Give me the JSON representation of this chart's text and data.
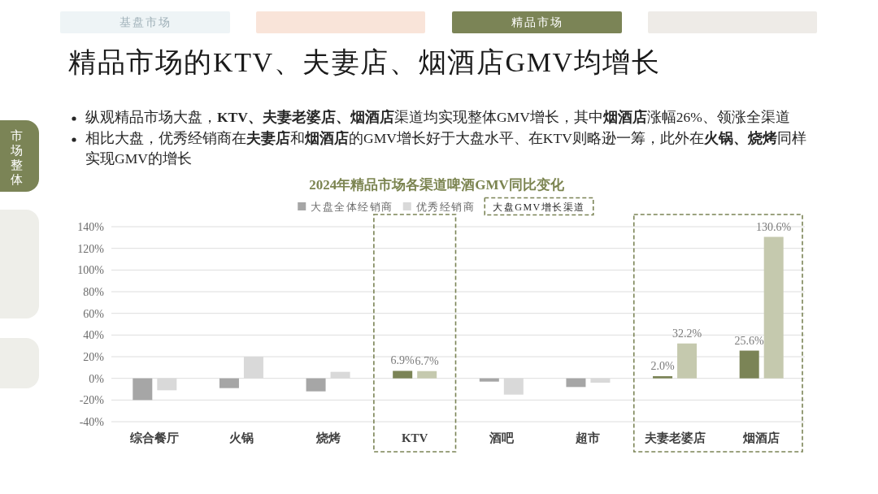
{
  "chart_data": {
    "type": "bar",
    "title": "2024年精品市场各渠道啤酒GMV同比变化",
    "categories": [
      "综合餐厅",
      "火锅",
      "烧烤",
      "KTV",
      "酒吧",
      "超市",
      "夫妻老婆店",
      "烟酒店"
    ],
    "series": [
      {
        "name": "大盘全体经销商",
        "color": "#a6a6a6",
        "colors": [
          "#a6a6a6",
          "#a6a6a6",
          "#a6a6a6",
          "#7b8456",
          "#a6a6a6",
          "#a6a6a6",
          "#7b8456",
          "#7b8456"
        ],
        "values": [
          -20,
          -9,
          -12,
          6.9,
          -3,
          -8,
          2.0,
          25.6
        ],
        "value_labels": [
          null,
          null,
          null,
          "6.9%",
          null,
          null,
          "2.0%",
          "25.6%"
        ]
      },
      {
        "name": "优秀经销商",
        "color": "#d9d9d9",
        "colors": [
          "#d9d9d9",
          "#d9d9d9",
          "#d9d9d9",
          "#c5c9ae",
          "#d9d9d9",
          "#d9d9d9",
          "#c5c9ae",
          "#c5c9ae"
        ],
        "values": [
          -11,
          20,
          6,
          6.7,
          -15,
          -4,
          32.2,
          130.6
        ],
        "value_labels": [
          null,
          null,
          null,
          "6.7%",
          null,
          null,
          "32.2%",
          "130.6%"
        ]
      }
    ],
    "ylim": [
      -40,
      140
    ],
    "yticks": [
      {
        "value": -40,
        "label": "-40%"
      },
      {
        "value": -20,
        "label": "-20%"
      },
      {
        "value": 0,
        "label": "0%"
      },
      {
        "value": 20,
        "label": "20%"
      },
      {
        "value": 40,
        "label": "40%"
      },
      {
        "value": 60,
        "label": "60%"
      },
      {
        "value": 80,
        "label": "80%"
      },
      {
        "value": 100,
        "label": "100%"
      },
      {
        "value": 120,
        "label": "120%"
      },
      {
        "value": 140,
        "label": "140%"
      }
    ],
    "grid": "y",
    "legend": "top",
    "annotations": [
      "精品市场的KTV、夫妻店、烟酒店GMV均增长",
      "纵观精品市场大盘，**KTV、夫妻老婆店、烟酒店**渠道均实现整体GMV增长，其中**烟酒店**涨幅26%、领涨全渠道",
      "相比大盘，优秀经销商在**夫妻店**和**烟酒店**的GMV增长好于大盘水平、在KTV则略逊一筹，此外在**火锅、烧烤**同样实现GMV的增长",
      "基盘市场",
      "精品市场",
      "市场整体",
      "大盘GMV增长渠道"
    ]
  }
}
